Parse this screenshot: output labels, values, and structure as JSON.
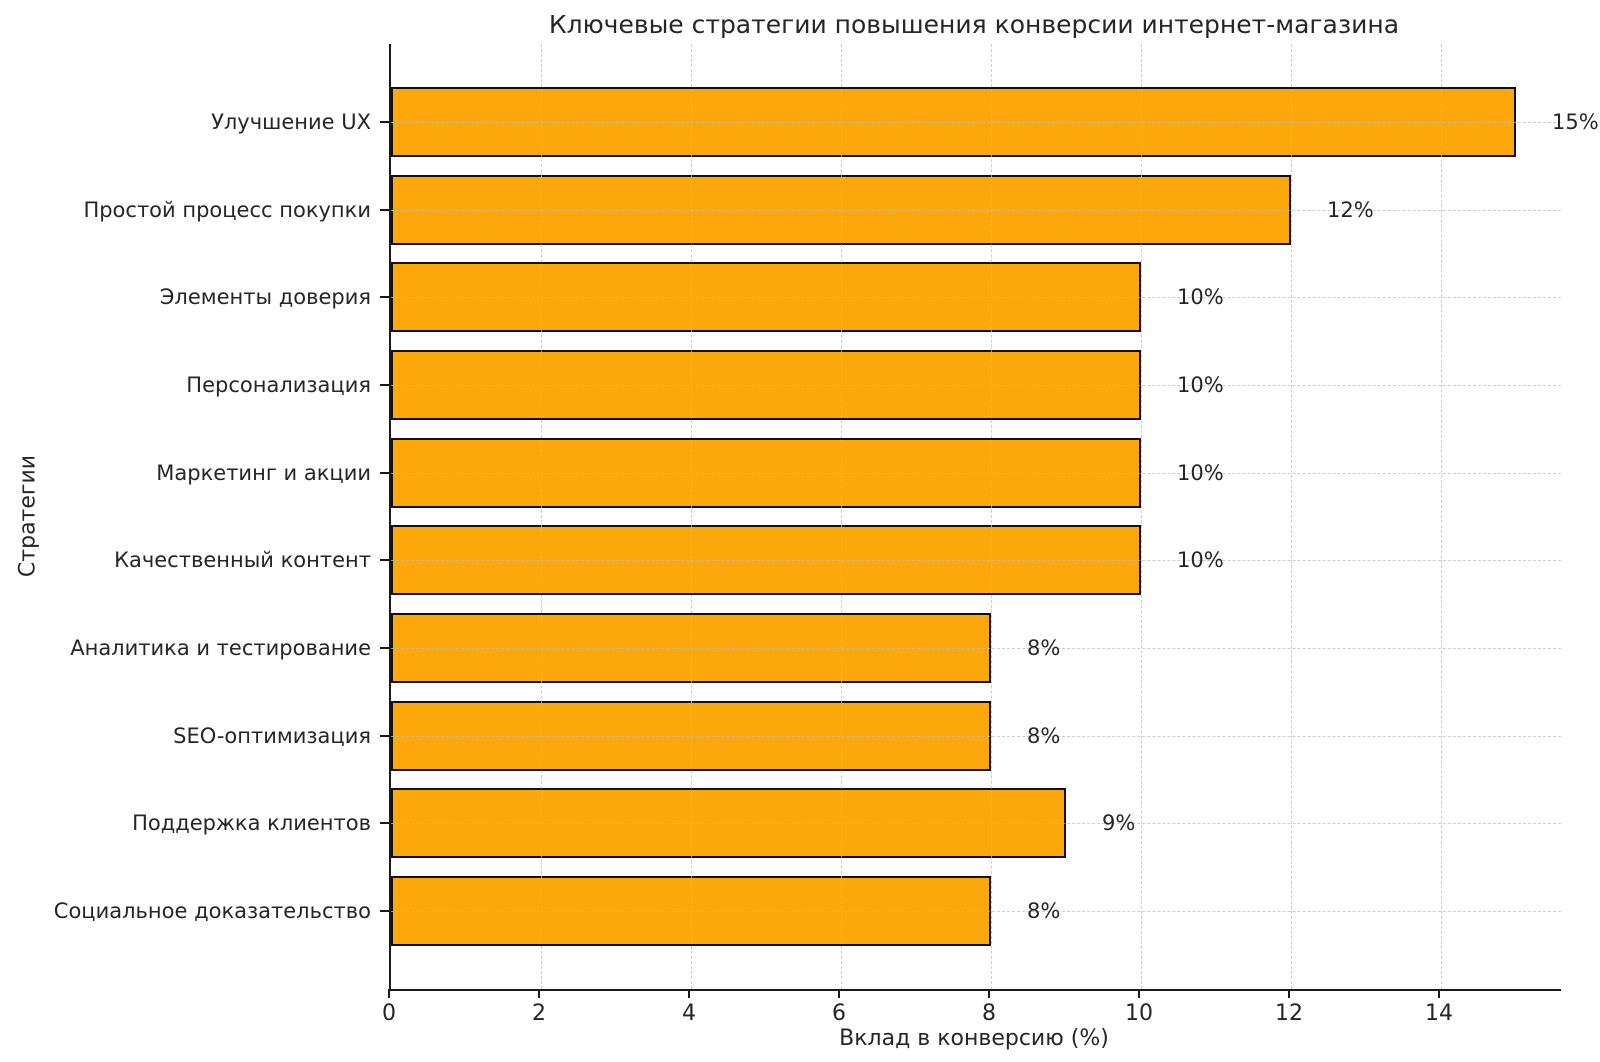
{
  "chart_data": {
    "type": "bar",
    "orientation": "horizontal",
    "title": "Ключевые стратегии повышения конверсии интернет-магазина",
    "xlabel": "Вклад в конверсию (%)",
    "ylabel": "Стратегии",
    "categories": [
      "Улучшение UX",
      "Простой процесс покупки",
      "Элементы доверия",
      "Персонализация",
      "Маркетинг и акции",
      "Качественный контент",
      "Аналитика и тестирование",
      "SEO-оптимизация",
      "Поддержка клиентов",
      "Социальное доказательство"
    ],
    "values": [
      15,
      12,
      10,
      10,
      10,
      10,
      8,
      8,
      9,
      8
    ],
    "value_labels": [
      "15%",
      "12%",
      "10%",
      "10%",
      "10%",
      "10%",
      "8%",
      "8%",
      "9%",
      "8%"
    ],
    "xlim": [
      0,
      15.6
    ],
    "xticks": [
      0,
      2,
      4,
      6,
      8,
      10,
      12,
      14
    ],
    "grid": true,
    "legend": "none",
    "colors": {
      "bar_fill": "#FCA80D",
      "bar_edge": "#111111",
      "grid": "#bdbdbd",
      "text": "#262626",
      "spine": "#1a1a1a",
      "background": "#ffffff"
    }
  }
}
